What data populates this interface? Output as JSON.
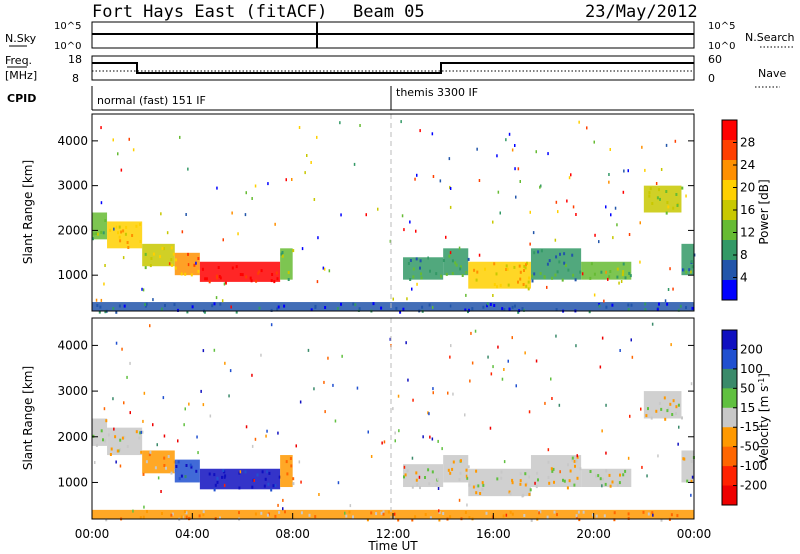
{
  "header": {
    "station": "Fort Hays East (fitACF)",
    "beam": "Beam 05",
    "date": "23/May/2012"
  },
  "panels": {
    "nsky_label": "N.Sky",
    "nsearch_label": "N.Search",
    "freq_label_top": "Freq.",
    "freq_label_bottom": "[MHz]",
    "cpid_label": "CPID",
    "nave_label": "Nave",
    "nsky_ticks": [
      "10^5",
      "10^0"
    ],
    "nsearch_ticks": [
      "10^5",
      "10^0"
    ],
    "freq_ticks": [
      "18",
      "8"
    ],
    "nave_ticks": [
      "60",
      "0"
    ],
    "cpid_segments": [
      "normal (fast) 151 IF",
      "themis 3300 IF"
    ]
  },
  "colorbars": {
    "power": {
      "label": "Power [dB]",
      "ticks": [
        "28",
        "24",
        "20",
        "16",
        "12",
        "8",
        "4"
      ],
      "colors": [
        "#ff0000",
        "#ff4000",
        "#ff9000",
        "#ffd000",
        "#c8c800",
        "#66bb33",
        "#339966",
        "#2255aa",
        "#0000ff"
      ]
    },
    "velocity": {
      "label": "Velocity [m s",
      "label_sup": "-1",
      "label_close": "]",
      "ticks": [
        "200",
        "100",
        "50",
        "15",
        "-15",
        "-50",
        "-100",
        "-200"
      ],
      "colors": [
        "#1010c0",
        "#2050d0",
        "#3a8a6a",
        "#60c040",
        "#c8c8c8",
        "#ff9900",
        "#ff6600",
        "#ff2200",
        "#ee0000"
      ]
    }
  },
  "chart_data": [
    {
      "type": "heatmap",
      "name": "power",
      "ylabel": "Slant Range [km]",
      "ylim": [
        200,
        4600
      ],
      "yticks": [
        "4000",
        "3000",
        "2000",
        "1000"
      ],
      "xlim": [
        0,
        24
      ],
      "regions": [
        {
          "t0": 0.0,
          "t1": 0.6,
          "r0": 1800,
          "r1": 2400,
          "level": 3
        },
        {
          "t0": 0.6,
          "t1": 2.0,
          "r0": 1600,
          "r1": 2200,
          "level": 5
        },
        {
          "t0": 2.0,
          "t1": 3.3,
          "r0": 1200,
          "r1": 1700,
          "level": 4
        },
        {
          "t0": 3.3,
          "t1": 4.3,
          "r0": 1000,
          "r1": 1500,
          "level": 6
        },
        {
          "t0": 4.3,
          "t1": 7.5,
          "r0": 850,
          "r1": 1300,
          "level": 8
        },
        {
          "t0": 7.5,
          "t1": 8.0,
          "r0": 900,
          "r1": 1600,
          "level": 3
        },
        {
          "t0": 12.4,
          "t1": 14.0,
          "r0": 900,
          "r1": 1400,
          "level": 2
        },
        {
          "t0": 14.0,
          "t1": 15.0,
          "r0": 1000,
          "r1": 1600,
          "level": 2
        },
        {
          "t0": 15.0,
          "t1": 17.5,
          "r0": 700,
          "r1": 1300,
          "level": 5
        },
        {
          "t0": 17.5,
          "t1": 19.5,
          "r0": 900,
          "r1": 1600,
          "level": 2
        },
        {
          "t0": 19.5,
          "t1": 21.5,
          "r0": 900,
          "r1": 1300,
          "level": 3
        },
        {
          "t0": 22.0,
          "t1": 23.5,
          "r0": 2400,
          "r1": 3000,
          "level": 4
        },
        {
          "t0": 23.5,
          "t1": 24.0,
          "r0": 1000,
          "r1": 1700,
          "level": 2
        },
        {
          "t0": 0.0,
          "t1": 24.0,
          "r0": 200,
          "r1": 400,
          "level": 1
        }
      ]
    },
    {
      "type": "heatmap",
      "name": "velocity",
      "ylabel": "Slant Range [km]",
      "ylim": [
        200,
        4600
      ],
      "yticks": [
        "4000",
        "3000",
        "2000",
        "1000"
      ],
      "xlim": [
        0,
        24
      ],
      "xticks": [
        "00:00",
        "04:00",
        "08:00",
        "12:00",
        "16:00",
        "20:00",
        "00:00"
      ],
      "xlabel": "Time UT",
      "regions": [
        {
          "t0": 0.0,
          "t1": 0.6,
          "r0": 1800,
          "r1": 2400,
          "level": 4
        },
        {
          "t0": 0.6,
          "t1": 2.0,
          "r0": 1600,
          "r1": 2200,
          "level": 4
        },
        {
          "t0": 2.0,
          "t1": 3.3,
          "r0": 1200,
          "r1": 1700,
          "level": 5
        },
        {
          "t0": 3.3,
          "t1": 4.3,
          "r0": 1000,
          "r1": 1500,
          "level": 1
        },
        {
          "t0": 4.3,
          "t1": 7.5,
          "r0": 850,
          "r1": 1300,
          "level": 0
        },
        {
          "t0": 7.5,
          "t1": 8.0,
          "r0": 900,
          "r1": 1600,
          "level": 5
        },
        {
          "t0": 12.4,
          "t1": 14.0,
          "r0": 900,
          "r1": 1400,
          "level": 4
        },
        {
          "t0": 14.0,
          "t1": 15.0,
          "r0": 1000,
          "r1": 1600,
          "level": 4
        },
        {
          "t0": 15.0,
          "t1": 17.5,
          "r0": 700,
          "r1": 1300,
          "level": 4
        },
        {
          "t0": 17.5,
          "t1": 19.5,
          "r0": 900,
          "r1": 1600,
          "level": 4
        },
        {
          "t0": 19.5,
          "t1": 21.5,
          "r0": 900,
          "r1": 1300,
          "level": 4
        },
        {
          "t0": 22.0,
          "t1": 23.5,
          "r0": 2400,
          "r1": 3000,
          "level": 4
        },
        {
          "t0": 23.5,
          "t1": 24.0,
          "r0": 1000,
          "r1": 1700,
          "level": 4
        },
        {
          "t0": 0.0,
          "t1": 24.0,
          "r0": 200,
          "r1": 400,
          "level": 5
        }
      ]
    }
  ]
}
